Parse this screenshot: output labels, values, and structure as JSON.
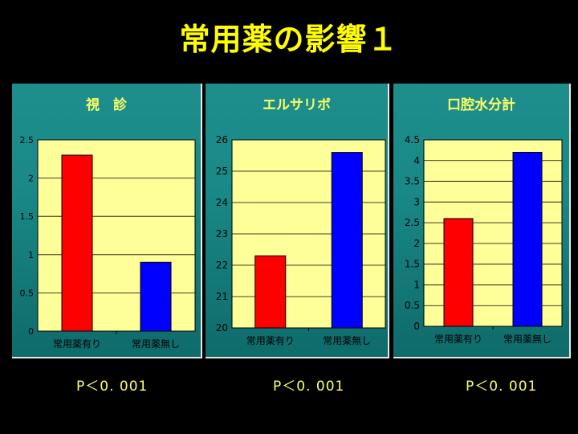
{
  "title": "常用薬の影響１",
  "colors": {
    "background": "#000000",
    "title": "#FFFF00",
    "panel": "#1A8A88",
    "plot": "#FFFF99",
    "series1": "#FF0000",
    "series2": "#0000FF"
  },
  "chart_data": [
    {
      "type": "bar",
      "title": "視　診",
      "categories": [
        "常用薬有り",
        "常用薬無し"
      ],
      "values": [
        2.3,
        0.9
      ],
      "ylim": [
        0,
        2.5
      ],
      "yticks": [
        "0",
        "0.5",
        "1",
        "1.5",
        "2",
        "2.5"
      ],
      "tick_values": [
        0,
        0.5,
        1,
        1.5,
        2,
        2.5
      ],
      "grid": true,
      "legend": "none"
    },
    {
      "type": "bar",
      "title": "エルサリボ",
      "categories": [
        "常用薬有り",
        "常用薬無し"
      ],
      "values": [
        22.3,
        25.6
      ],
      "ylim": [
        20,
        26
      ],
      "yticks": [
        "20",
        "21",
        "22",
        "23",
        "24",
        "25",
        "26"
      ],
      "tick_values": [
        20,
        21,
        22,
        23,
        24,
        25,
        26
      ],
      "grid": true,
      "legend": "none"
    },
    {
      "type": "bar",
      "title": "口腔水分計",
      "categories": [
        "常用薬有り",
        "常用薬無し"
      ],
      "values": [
        2.6,
        4.2
      ],
      "ylim": [
        0,
        4.5
      ],
      "yticks": [
        "0",
        "0.5",
        "1",
        "1.5",
        "2",
        "2.5",
        "3",
        "3.5",
        "4",
        "4.5"
      ],
      "tick_values": [
        0,
        0.5,
        1,
        1.5,
        2,
        2.5,
        3,
        3.5,
        4,
        4.5
      ],
      "grid": true,
      "legend": "none"
    }
  ],
  "pvalues": [
    "P＜0. 001",
    "P＜0. 001",
    "P＜0. 001"
  ]
}
